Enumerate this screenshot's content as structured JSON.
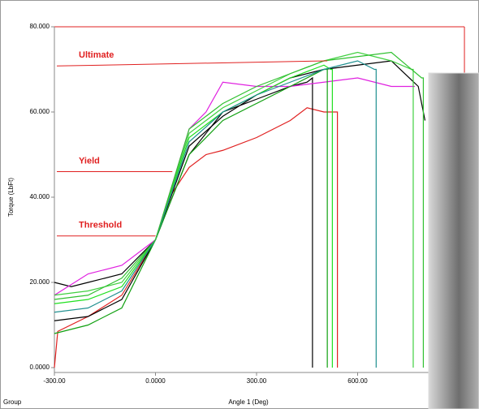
{
  "chart_data": {
    "type": "line",
    "y_label": "Torque (LbFt)",
    "x_label": "Angle 1 (Deg)",
    "group_label": "Group",
    "xlim": [
      -300,
      917
    ],
    "ylim": [
      0,
      80
    ],
    "xticks": [
      {
        "value": -300,
        "label": "-300.00"
      },
      {
        "value": 0,
        "label": "0.0000"
      },
      {
        "value": 300,
        "label": "300.00"
      },
      {
        "value": 600,
        "label": "600.00"
      }
    ],
    "yticks": [
      {
        "value": 0,
        "label": "0.0000"
      },
      {
        "value": 20,
        "label": "20.000"
      },
      {
        "value": 40,
        "label": "40.000"
      },
      {
        "value": 60,
        "label": "60.000"
      },
      {
        "value": 80,
        "label": "80.000"
      }
    ],
    "annotations": [
      {
        "text": "Ultimate",
        "x": [
          -300,
          510
        ],
        "y": [
          70.8,
          72
        ]
      },
      {
        "text": "Yield",
        "x": [
          -300,
          50
        ],
        "y": [
          46,
          46
        ]
      },
      {
        "text": "Threshold",
        "x": [
          -300,
          0
        ],
        "y": [
          30.9,
          30.9
        ]
      }
    ],
    "series": [
      {
        "color": "#e02020",
        "x": [
          -300,
          -290,
          -200,
          -100,
          0,
          50,
          100,
          150,
          200,
          300,
          400,
          450,
          500,
          540,
          540
        ],
        "values": [
          0,
          8.5,
          12,
          17,
          30,
          41,
          47,
          50,
          51,
          54,
          58,
          61,
          60,
          60,
          0
        ]
      },
      {
        "color": "#000000",
        "x": [
          -300,
          -250,
          -200,
          -100,
          0,
          100,
          200,
          300,
          400,
          450,
          466,
          466
        ],
        "values": [
          20,
          19,
          20,
          22,
          30,
          50,
          60,
          63,
          66,
          67,
          68,
          0
        ]
      },
      {
        "color": "#000000",
        "x": [
          -300,
          -200,
          -100,
          0,
          100,
          200,
          300,
          400,
          500,
          600,
          700,
          780,
          800
        ],
        "values": [
          11,
          12,
          16,
          30,
          52,
          59,
          64,
          68,
          70,
          71,
          72,
          66,
          58
        ]
      },
      {
        "color": "#e020e0",
        "x": [
          -300,
          -200,
          -100,
          0,
          100,
          150,
          200,
          300,
          400,
          500,
          600,
          700,
          770
        ],
        "values": [
          17,
          22,
          24,
          30,
          56,
          60,
          67,
          66,
          66,
          67,
          68,
          66,
          66
        ]
      },
      {
        "color": "#10a010",
        "x": [
          -300,
          -250,
          -200,
          -100,
          0,
          100,
          200,
          300,
          400,
          500,
          510,
          510
        ],
        "values": [
          8,
          9,
          10,
          14,
          30,
          50,
          58,
          62,
          66,
          70,
          70,
          0
        ]
      },
      {
        "color": "#20e020",
        "x": [
          -300,
          -200,
          -100,
          0,
          100,
          200,
          300,
          400,
          500,
          520,
          525,
          525
        ],
        "values": [
          15,
          16,
          19,
          30,
          54,
          60,
          64,
          68,
          71,
          70,
          70,
          0
        ]
      },
      {
        "color": "#40d040",
        "x": [
          -300,
          -200,
          -100,
          0,
          100,
          200,
          300,
          400,
          500,
          600,
          700,
          760,
          765,
          765
        ],
        "values": [
          17,
          18,
          20,
          30,
          55,
          61,
          65,
          69,
          72,
          74,
          72,
          70,
          70,
          0
        ]
      },
      {
        "color": "#209090",
        "x": [
          -300,
          -200,
          -100,
          0,
          100,
          200,
          300,
          400,
          500,
          600,
          650,
          655,
          655
        ],
        "values": [
          13,
          14,
          18,
          30,
          53,
          60,
          64,
          67,
          70,
          72,
          70,
          70,
          0
        ]
      },
      {
        "color": "#30c030",
        "x": [
          -300,
          -200,
          -100,
          0,
          100,
          200,
          300,
          400,
          500,
          600,
          700,
          790,
          795,
          795
        ],
        "values": [
          16,
          17,
          21,
          30,
          56,
          62,
          66,
          69,
          72,
          73,
          74,
          68,
          68,
          0
        ]
      }
    ]
  }
}
